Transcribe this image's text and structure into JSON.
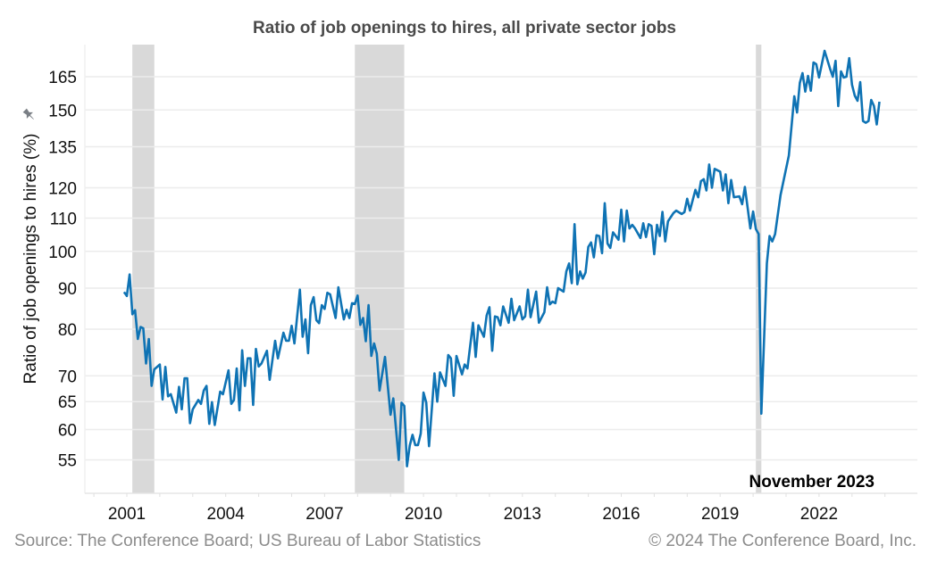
{
  "chart_data": {
    "type": "line",
    "title": "Ratio of job openings to hires, all private sector jobs",
    "xlabel": "",
    "ylabel": "Ratio of job openings to hires (%)",
    "y_scale": "log",
    "ylim": [
      52,
      180
    ],
    "y_ticks": [
      55,
      60,
      65,
      70,
      80,
      90,
      100,
      110,
      120,
      135,
      150,
      165
    ],
    "x_ticks": [
      "2001",
      "2004",
      "2007",
      "2010",
      "2013",
      "2016",
      "2019",
      "2022"
    ],
    "xlim": [
      "2000-09",
      "2025-01"
    ],
    "grid": true,
    "legend": "none",
    "line_color": "#0f73b4",
    "recession_color": "#d9d9d9",
    "recessions": [
      [
        "2001-03",
        "2001-11"
      ],
      [
        "2007-12",
        "2009-06"
      ],
      [
        "2020-02",
        "2020-04"
      ]
    ],
    "annotation": "November 2023",
    "series": [
      {
        "points": [
          [
            "2000-12",
            89
          ],
          [
            "2001-01",
            88
          ],
          [
            "2001-02",
            93.6
          ],
          [
            "2001-03",
            83.5
          ],
          [
            "2001-04",
            84.5
          ],
          [
            "2001-05",
            77.8
          ],
          [
            "2001-06",
            80.5
          ],
          [
            "2001-07",
            80.2
          ],
          [
            "2001-08",
            72.5
          ],
          [
            "2001-09",
            77.8
          ],
          [
            "2001-10",
            68
          ],
          [
            "2001-11",
            71.3
          ],
          [
            "2002-01",
            72.3
          ],
          [
            "2002-02",
            65.4
          ],
          [
            "2002-03",
            71.8
          ],
          [
            "2002-04",
            66
          ],
          [
            "2002-05",
            66.4
          ],
          [
            "2002-07",
            63
          ],
          [
            "2002-08",
            67.8
          ],
          [
            "2002-09",
            63.6
          ],
          [
            "2002-10",
            69.5
          ],
          [
            "2002-11",
            69.5
          ],
          [
            "2002-12",
            61.1
          ],
          [
            "2003-01",
            63.6
          ],
          [
            "2003-03",
            65.3
          ],
          [
            "2003-04",
            64.6
          ],
          [
            "2003-05",
            67.1
          ],
          [
            "2003-06",
            68
          ],
          [
            "2003-07",
            61
          ],
          [
            "2003-08",
            64.9
          ],
          [
            "2003-09",
            60.8
          ],
          [
            "2003-11",
            66.9
          ],
          [
            "2003-12",
            66.4
          ],
          [
            "2004-02",
            71.1
          ],
          [
            "2004-03",
            64.6
          ],
          [
            "2004-04",
            65.3
          ],
          [
            "2004-05",
            71.5
          ],
          [
            "2004-06",
            63.4
          ],
          [
            "2004-07",
            75.3
          ],
          [
            "2004-08",
            68
          ],
          [
            "2004-09",
            73.6
          ],
          [
            "2004-10",
            73.6
          ],
          [
            "2004-11",
            64.4
          ],
          [
            "2004-12",
            75.6
          ],
          [
            "2005-01",
            71.9
          ],
          [
            "2005-02",
            72.5
          ],
          [
            "2005-04",
            75.2
          ],
          [
            "2005-05",
            69.2
          ],
          [
            "2005-07",
            77.4
          ],
          [
            "2005-08",
            73.6
          ],
          [
            "2005-10",
            79.2
          ],
          [
            "2005-11",
            77.4
          ],
          [
            "2005-12",
            77.4
          ],
          [
            "2006-01",
            80.8
          ],
          [
            "2006-02",
            76.8
          ],
          [
            "2006-04",
            89.6
          ],
          [
            "2006-05",
            78.3
          ],
          [
            "2006-06",
            82.3
          ],
          [
            "2006-07",
            74.7
          ],
          [
            "2006-08",
            85.7
          ],
          [
            "2006-09",
            87.7
          ],
          [
            "2006-10",
            82.1
          ],
          [
            "2006-11",
            81.4
          ],
          [
            "2006-12",
            85.7
          ],
          [
            "2007-01",
            84.8
          ],
          [
            "2007-02",
            88.8
          ],
          [
            "2007-03",
            88.4
          ],
          [
            "2007-05",
            82.6
          ],
          [
            "2007-06",
            90.2
          ],
          [
            "2007-08",
            82.3
          ],
          [
            "2007-09",
            84.6
          ],
          [
            "2007-10",
            82.6
          ],
          [
            "2007-11",
            86.2
          ],
          [
            "2007-12",
            86
          ],
          [
            "2008-01",
            88.1
          ],
          [
            "2008-02",
            81
          ],
          [
            "2008-03",
            82.6
          ],
          [
            "2008-04",
            77.3
          ],
          [
            "2008-05",
            85.7
          ],
          [
            "2008-06",
            74.1
          ],
          [
            "2008-07",
            76.8
          ],
          [
            "2008-08",
            74.6
          ],
          [
            "2008-09",
            67.1
          ],
          [
            "2008-11",
            73.9
          ],
          [
            "2009-01",
            62.6
          ],
          [
            "2009-02",
            65.6
          ],
          [
            "2009-04",
            55
          ],
          [
            "2009-05",
            64.8
          ],
          [
            "2009-06",
            64.2
          ],
          [
            "2009-07",
            54
          ],
          [
            "2009-08",
            57.3
          ],
          [
            "2009-09",
            59.1
          ],
          [
            "2009-10",
            57.4
          ],
          [
            "2009-11",
            57.4
          ],
          [
            "2009-12",
            59.3
          ],
          [
            "2010-01",
            66.7
          ],
          [
            "2010-02",
            64.8
          ],
          [
            "2010-03",
            57.2
          ],
          [
            "2010-05",
            70.5
          ],
          [
            "2010-06",
            65
          ],
          [
            "2010-07",
            70.7
          ],
          [
            "2010-09",
            68
          ],
          [
            "2010-10",
            74.3
          ],
          [
            "2010-11",
            73.6
          ],
          [
            "2010-12",
            66.1
          ],
          [
            "2011-01",
            74.1
          ],
          [
            "2011-03",
            70.3
          ],
          [
            "2011-04",
            72.3
          ],
          [
            "2011-05",
            71.5
          ],
          [
            "2011-07",
            81.5
          ],
          [
            "2011-08",
            73.9
          ],
          [
            "2011-09",
            80.9
          ],
          [
            "2011-11",
            78.3
          ],
          [
            "2011-12",
            83.2
          ],
          [
            "2012-01",
            85.2
          ],
          [
            "2012-02",
            75.2
          ],
          [
            "2012-03",
            83
          ],
          [
            "2012-04",
            82.8
          ],
          [
            "2012-05",
            80.9
          ],
          [
            "2012-06",
            85.4
          ],
          [
            "2012-08",
            81.5
          ],
          [
            "2012-09",
            87.3
          ],
          [
            "2012-10",
            82.1
          ],
          [
            "2012-12",
            85.4
          ],
          [
            "2013-01",
            82.3
          ],
          [
            "2013-02",
            83
          ],
          [
            "2013-03",
            89.6
          ],
          [
            "2013-04",
            82.8
          ],
          [
            "2013-06",
            89.1
          ],
          [
            "2013-07",
            81.5
          ],
          [
            "2013-09",
            84
          ],
          [
            "2013-10",
            90.2
          ],
          [
            "2013-11",
            85.9
          ],
          [
            "2013-12",
            86.6
          ],
          [
            "2014-01",
            86.2
          ],
          [
            "2014-02",
            90
          ],
          [
            "2014-04",
            89.1
          ],
          [
            "2014-05",
            94.4
          ],
          [
            "2014-06",
            96.6
          ],
          [
            "2014-07",
            91.3
          ],
          [
            "2014-08",
            108.1
          ],
          [
            "2014-09",
            91
          ],
          [
            "2014-10",
            94.4
          ],
          [
            "2014-11",
            92.5
          ],
          [
            "2014-12",
            94.1
          ],
          [
            "2015-01",
            101.3
          ],
          [
            "2015-02",
            102.6
          ],
          [
            "2015-03",
            98.3
          ],
          [
            "2015-04",
            104.7
          ],
          [
            "2015-05",
            104.5
          ],
          [
            "2015-06",
            99.5
          ],
          [
            "2015-07",
            114.8
          ],
          [
            "2015-08",
            102.3
          ],
          [
            "2015-09",
            101
          ],
          [
            "2015-10",
            105.6
          ],
          [
            "2015-12",
            103.4
          ],
          [
            "2016-01",
            112.7
          ],
          [
            "2016-02",
            102.9
          ],
          [
            "2016-03",
            112.4
          ],
          [
            "2016-04",
            106.8
          ],
          [
            "2016-05",
            107.9
          ],
          [
            "2016-06",
            106.8
          ],
          [
            "2016-08",
            103.9
          ],
          [
            "2016-09",
            108.4
          ],
          [
            "2016-10",
            104.2
          ],
          [
            "2016-11",
            108.1
          ],
          [
            "2016-12",
            107.6
          ],
          [
            "2017-01",
            99.2
          ],
          [
            "2017-02",
            107.9
          ],
          [
            "2017-03",
            104.5
          ],
          [
            "2017-04",
            112
          ],
          [
            "2017-05",
            102.9
          ],
          [
            "2017-06",
            109
          ],
          [
            "2017-08",
            111.6
          ],
          [
            "2017-09",
            112.4
          ],
          [
            "2017-11",
            111.3
          ],
          [
            "2017-12",
            111.9
          ],
          [
            "2018-01",
            116.3
          ],
          [
            "2018-02",
            112.4
          ],
          [
            "2018-04",
            119.3
          ],
          [
            "2018-05",
            116.8
          ],
          [
            "2018-06",
            122.3
          ],
          [
            "2018-07",
            123
          ],
          [
            "2018-08",
            119.1
          ],
          [
            "2018-09",
            128.3
          ],
          [
            "2018-10",
            120
          ],
          [
            "2018-11",
            126.7
          ],
          [
            "2019-01",
            125.7
          ],
          [
            "2019-02",
            119.1
          ],
          [
            "2019-03",
            124.7
          ],
          [
            "2019-04",
            114.8
          ],
          [
            "2019-05",
            122.7
          ],
          [
            "2019-06",
            116.8
          ],
          [
            "2019-08",
            117.1
          ],
          [
            "2019-09",
            114.5
          ],
          [
            "2019-10",
            120.3
          ],
          [
            "2019-12",
            106.8
          ],
          [
            "2020-01",
            112.1
          ],
          [
            "2020-02",
            106.6
          ],
          [
            "2020-03",
            105.1
          ],
          [
            "2020-04",
            62.8
          ],
          [
            "2020-06",
            96.6
          ],
          [
            "2020-07",
            104.5
          ],
          [
            "2020-08",
            102.9
          ],
          [
            "2020-09",
            105.1
          ],
          [
            "2020-11",
            117.5
          ],
          [
            "2021-02",
            131.6
          ],
          [
            "2021-04",
            156
          ],
          [
            "2021-05",
            148.9
          ],
          [
            "2021-06",
            162.1
          ],
          [
            "2021-07",
            166.7
          ],
          [
            "2021-08",
            158.1
          ],
          [
            "2021-09",
            165.4
          ],
          [
            "2021-10",
            158.5
          ],
          [
            "2021-11",
            171.9
          ],
          [
            "2021-12",
            171
          ],
          [
            "2022-01",
            164.6
          ],
          [
            "2022-03",
            177.7
          ],
          [
            "2022-05",
            168.9
          ],
          [
            "2022-06",
            165
          ],
          [
            "2022-07",
            172.7
          ],
          [
            "2022-08",
            151.7
          ],
          [
            "2022-09",
            167.5
          ],
          [
            "2022-10",
            164.6
          ],
          [
            "2022-11",
            165
          ],
          [
            "2022-12",
            174
          ],
          [
            "2023-01",
            161.3
          ],
          [
            "2023-02",
            156.3
          ],
          [
            "2023-03",
            154
          ],
          [
            "2023-04",
            162.5
          ],
          [
            "2023-05",
            145.3
          ],
          [
            "2023-06",
            144.6
          ],
          [
            "2023-07",
            145.3
          ],
          [
            "2023-08",
            154.4
          ],
          [
            "2023-09",
            151.7
          ],
          [
            "2023-10",
            143.9
          ],
          [
            "2023-11",
            153.6
          ]
        ]
      }
    ]
  },
  "footer": {
    "source": "Source: The Conference Board; US Bureau of Labor Statistics",
    "copyright": "© 2024 The Conference Board, Inc."
  }
}
